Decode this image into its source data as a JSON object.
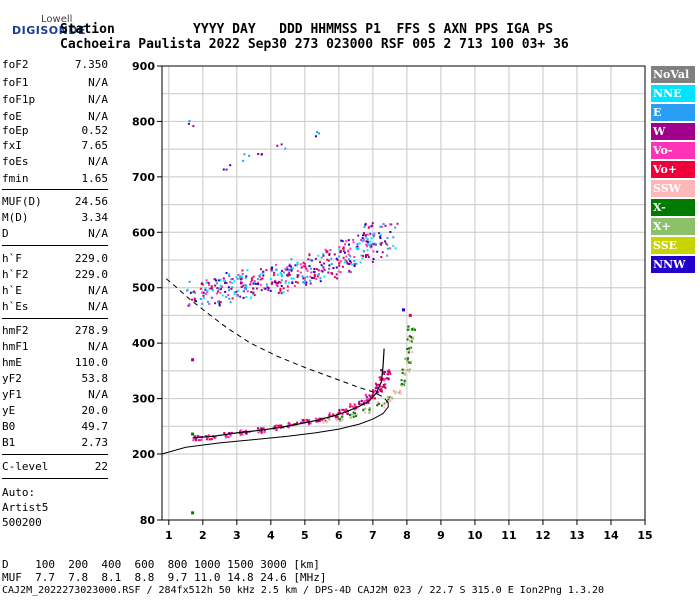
{
  "logo": {
    "line1": "Lowell",
    "line2": "DIGISONDE"
  },
  "header": {
    "row1": "Station          YYYY DAY   DDD HHMMSS P1  FFS S AXN PPS IGA PS",
    "row2": "Cachoeira Paulista 2022 Sep30 273 023000 RSF 005 2 713 100 03+ 36"
  },
  "params_group1": [
    {
      "label": "foF2",
      "value": "7.350"
    },
    {
      "label": "foF1",
      "value": "N/A"
    },
    {
      "label": "foF1p",
      "value": "N/A"
    },
    {
      "label": "foE",
      "value": "N/A"
    },
    {
      "label": "foEp",
      "value": "0.52"
    },
    {
      "label": "fxI",
      "value": "7.65"
    },
    {
      "label": "foEs",
      "value": "N/A"
    },
    {
      "label": "fmin",
      "value": "1.65"
    }
  ],
  "params_group2": [
    {
      "label": "MUF(D)",
      "value": "24.56"
    },
    {
      "label": "M(D)",
      "value": "3.34"
    },
    {
      "label": "D",
      "value": "N/A"
    }
  ],
  "params_group3": [
    {
      "label": "h`F",
      "value": "229.0"
    },
    {
      "label": "h`F2",
      "value": "229.0"
    },
    {
      "label": "h`E",
      "value": "N/A"
    },
    {
      "label": "h`Es",
      "value": "N/A"
    }
  ],
  "params_group4": [
    {
      "label": "hmF2",
      "value": "278.9"
    },
    {
      "label": "hmF1",
      "value": "N/A"
    },
    {
      "label": "hmE",
      "value": "110.0"
    },
    {
      "label": "yF2",
      "value": "53.8"
    },
    {
      "label": "yF1",
      "value": "N/A"
    },
    {
      "label": "yE",
      "value": "20.0"
    },
    {
      "label": "B0",
      "value": "49.7"
    },
    {
      "label": "B1",
      "value": "2.73"
    }
  ],
  "params_group5": [
    {
      "label": "C-level",
      "value": "22"
    }
  ],
  "autoscaling": {
    "line1": "Auto:",
    "line2": "Artist5",
    "line3": "500200"
  },
  "legend": [
    {
      "label": "NoVal",
      "color": "#808080",
      "text_color": "#ffffff"
    },
    {
      "label": "NNE",
      "color": "#00e5ff",
      "text_color": "#ffffff"
    },
    {
      "label": "E",
      "color": "#2a9df4",
      "text_color": "#ffffff"
    },
    {
      "label": "W",
      "color": "#a0008c",
      "text_color": "#ffffff"
    },
    {
      "label": "Vo-",
      "color": "#ff33b8",
      "text_color": "#ffffff"
    },
    {
      "label": "Vo+",
      "color": "#f0003a",
      "text_color": "#ffffff"
    },
    {
      "label": "SSW",
      "color": "#ffb8b8",
      "text_color": "#ffffff"
    },
    {
      "label": "X-",
      "color": "#007a00",
      "text_color": "#ffffff"
    },
    {
      "label": "X+",
      "color": "#8cc06a",
      "text_color": "#ffffff"
    },
    {
      "label": "SSE",
      "color": "#c8d400",
      "text_color": "#ffffff"
    },
    {
      "label": "NNW",
      "color": "#2200cc",
      "text_color": "#ffffff"
    }
  ],
  "muf_table": {
    "row1": "D    100  200  400  600  800 1000 1500 3000 [km]",
    "row2": "MUF  7.7  7.8  8.1  8.8  9.7 11.0 14.8 24.6 [MHz]"
  },
  "footer": "CAJ2M_2022273023000.RSF / 284fx512h 50 kHz 2.5 km / DPS-4D CAJ2M 023 / 22.7 S 315.0 E Ion2Png 1.3.20",
  "chart_data": {
    "type": "scatter",
    "xlabel": "",
    "ylabel": "",
    "xlim": [
      0.8,
      15
    ],
    "ylim": [
      80,
      900
    ],
    "x_ticks": [
      1,
      2,
      3,
      4,
      5,
      6,
      7,
      8,
      9,
      10,
      11,
      12,
      13,
      14,
      15
    ],
    "x_tick_labels": [
      "1",
      "2",
      "3",
      "4",
      "5",
      "6",
      "7",
      "8",
      "9",
      "10",
      "11",
      "12",
      "13",
      "14",
      "15"
    ],
    "y_ticks": [
      80,
      200,
      300,
      400,
      500,
      600,
      700,
      800,
      900
    ],
    "y_tick_labels": [
      "80",
      "200",
      "300",
      "400",
      "500",
      "600",
      "700",
      "800",
      "900"
    ],
    "grid": true,
    "o_trace_profile": {
      "name": "",
      "x": [
        1.7,
        2.3,
        3.0,
        3.7,
        4.3,
        4.8,
        5.3,
        5.8,
        6.2,
        6.6,
        6.9,
        7.1,
        7.25,
        7.3,
        7.33
      ],
      "y": [
        229,
        232,
        238,
        243,
        248,
        254,
        260,
        268,
        276,
        286,
        296,
        310,
        330,
        360,
        390
      ]
    },
    "x_trace_profile": {
      "name": "",
      "x": [
        0.8,
        1.5,
        2.5,
        3.5,
        4.5,
        5.3,
        6.0,
        6.6,
        7.0,
        7.3,
        7.45,
        7.45,
        7.3,
        7.0,
        6.5,
        5.8,
        5.0,
        4.2,
        3.4,
        2.7,
        2.1,
        1.6,
        1.2,
        0.85
      ],
      "y": [
        200,
        212,
        220,
        226,
        232,
        238,
        245,
        254,
        263,
        273,
        285,
        293,
        303,
        312,
        322,
        338,
        356,
        376,
        400,
        428,
        456,
        480,
        502,
        520
      ]
    },
    "o_trace_echoes": [
      {
        "x": 1.8,
        "y": 230
      },
      {
        "x": 2.2,
        "y": 232
      },
      {
        "x": 2.7,
        "y": 236
      },
      {
        "x": 3.2,
        "y": 240
      },
      {
        "x": 3.7,
        "y": 244
      },
      {
        "x": 4.2,
        "y": 249
      },
      {
        "x": 4.6,
        "y": 254
      },
      {
        "x": 5.0,
        "y": 259
      },
      {
        "x": 5.4,
        "y": 264
      },
      {
        "x": 5.8,
        "y": 271
      },
      {
        "x": 6.1,
        "y": 278
      },
      {
        "x": 6.4,
        "y": 287
      },
      {
        "x": 6.7,
        "y": 296
      },
      {
        "x": 6.9,
        "y": 305
      },
      {
        "x": 7.1,
        "y": 315
      },
      {
        "x": 7.2,
        "y": 325
      },
      {
        "x": 7.3,
        "y": 338
      },
      {
        "x": 7.35,
        "y": 350
      }
    ],
    "x_trace_echoes": [
      {
        "x": 5.6,
        "y": 262
      },
      {
        "x": 6.0,
        "y": 266
      },
      {
        "x": 6.4,
        "y": 272
      },
      {
        "x": 6.8,
        "y": 280
      },
      {
        "x": 7.2,
        "y": 290
      },
      {
        "x": 7.5,
        "y": 300
      },
      {
        "x": 7.7,
        "y": 315
      },
      {
        "x": 7.85,
        "y": 330
      },
      {
        "x": 7.95,
        "y": 350
      },
      {
        "x": 8.0,
        "y": 370
      },
      {
        "x": 8.05,
        "y": 390
      },
      {
        "x": 8.1,
        "y": 410
      },
      {
        "x": 8.1,
        "y": 430
      }
    ],
    "spread_f_echoes": [
      {
        "x": 2.0,
        "y": 490
      },
      {
        "x": 2.5,
        "y": 495
      },
      {
        "x": 3.0,
        "y": 505
      },
      {
        "x": 3.5,
        "y": 510
      },
      {
        "x": 4.0,
        "y": 515
      },
      {
        "x": 4.5,
        "y": 525
      },
      {
        "x": 5.0,
        "y": 530
      },
      {
        "x": 5.5,
        "y": 540
      },
      {
        "x": 6.0,
        "y": 552
      },
      {
        "x": 6.5,
        "y": 565
      },
      {
        "x": 6.9,
        "y": 580
      },
      {
        "x": 7.2,
        "y": 595
      }
    ],
    "oblique_echoes": [
      {
        "x": 2.7,
        "y": 720
      },
      {
        "x": 3.2,
        "y": 735
      },
      {
        "x": 3.7,
        "y": 745
      },
      {
        "x": 4.3,
        "y": 755
      },
      {
        "x": 5.3,
        "y": 780
      },
      {
        "x": 1.7,
        "y": 795
      }
    ],
    "isolated_echoes": [
      {
        "x": 1.7,
        "y": 236
      },
      {
        "x": 1.7,
        "y": 93
      },
      {
        "x": 1.7,
        "y": 370
      },
      {
        "x": 7.9,
        "y": 460
      },
      {
        "x": 8.1,
        "y": 450
      }
    ]
  }
}
